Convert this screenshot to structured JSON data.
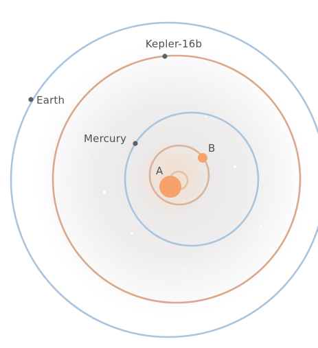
{
  "diagram": {
    "colors": {
      "earth_orbit": "#a9c4dc",
      "kepler_orbit": "#d9a88c",
      "mercury_orbit": "#a9c4dc",
      "binary_orbit": "#d9b49a",
      "star": "#f7a26c",
      "planet_marker": "#5a6168",
      "label": "#4a5158"
    },
    "labels": {
      "kepler": "Kepler-16b",
      "earth": "Earth",
      "mercury": "Mercury",
      "star_a": "A",
      "star_b": "B"
    }
  }
}
